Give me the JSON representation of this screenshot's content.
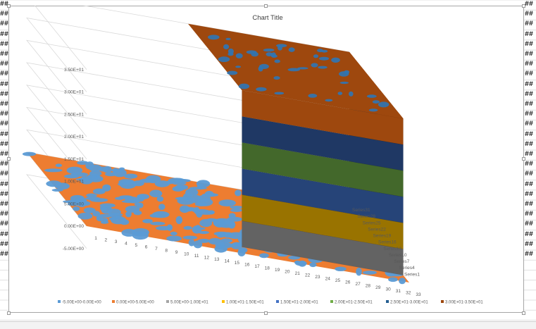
{
  "chart_data": {
    "type": "3d-surface",
    "title": "Chart Title",
    "y_ticks": [
      "-5.00E+00",
      "0.00E+00",
      "5.00E+00",
      "1.00E+01",
      "1.50E+01",
      "2.00E+01",
      "2.50E+01",
      "3.00E+01",
      "3.50E+01"
    ],
    "x_categories": [
      "1",
      "2",
      "3",
      "4",
      "5",
      "6",
      "7",
      "8",
      "9",
      "10",
      "11",
      "12",
      "13",
      "14",
      "15",
      "16",
      "17",
      "18",
      "19",
      "20",
      "21",
      "22",
      "23",
      "24",
      "25",
      "26",
      "27",
      "28",
      "29",
      "30",
      "31",
      "32",
      "33"
    ],
    "series_labels": [
      "Series1",
      "Series4",
      "Series7",
      "Series10",
      "Series13",
      "Series16",
      "Series19",
      "Series22",
      "Series25",
      "Series28",
      "Series31"
    ],
    "ylim": [
      -5,
      35
    ],
    "surface": {
      "description_free": true,
      "low_plateau_value": 0,
      "high_plateau_value": 35,
      "step_at_category": 17
    },
    "legend": [
      {
        "label": "-5.00E+00-0.00E+00",
        "color": "#5b9bd5"
      },
      {
        "label": "0.00E+00-5.00E+00",
        "color": "#ed7d31"
      },
      {
        "label": "5.00E+00-1.00E+01",
        "color": "#a5a5a5"
      },
      {
        "label": "1.00E+01-1.50E+01",
        "color": "#ffc000"
      },
      {
        "label": "1.50E+01-2.00E+01",
        "color": "#4472c4"
      },
      {
        "label": "2.00E+01-2.50E+01",
        "color": "#70ad47"
      },
      {
        "label": "2.50E+01-3.00E+01",
        "color": "#255e91"
      },
      {
        "label": "3.00E+01-3.50E+01",
        "color": "#9e480e"
      }
    ],
    "band_colors": [
      "#9e480e",
      "#636363",
      "#997300",
      "#264478",
      "#43682b",
      "#1f3864",
      "#9e480e"
    ],
    "grid": true,
    "legend_position": "bottom"
  }
}
